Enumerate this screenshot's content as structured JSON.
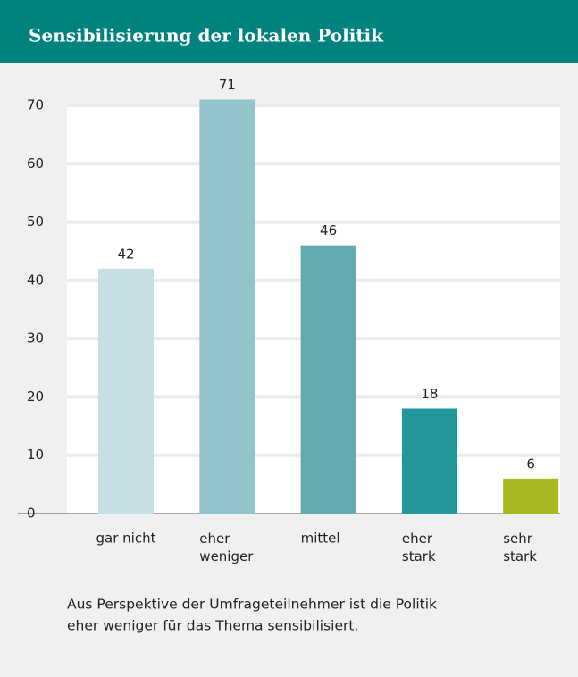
{
  "chart_data": {
    "type": "bar",
    "title": "Sensibilisierung der lokalen Politik",
    "categories": [
      "gar nicht",
      "eher\nweniger",
      "mittel",
      "eher\nstark",
      "sehr\nstark"
    ],
    "values": [
      42,
      71,
      46,
      18,
      6
    ],
    "colors": [
      "#c5dfe4",
      "#94c4cb",
      "#62a9b0",
      "#22979b",
      "#a8b820"
    ],
    "ylim": [
      0,
      70
    ],
    "yticks": [
      0,
      10,
      20,
      30,
      40,
      50,
      60,
      70
    ],
    "grid": true,
    "note": [
      "Aus Perspektive der Umfrageteilnehmer ist die Politik",
      "eher weniger für das Thema sensibilisiert."
    ]
  }
}
